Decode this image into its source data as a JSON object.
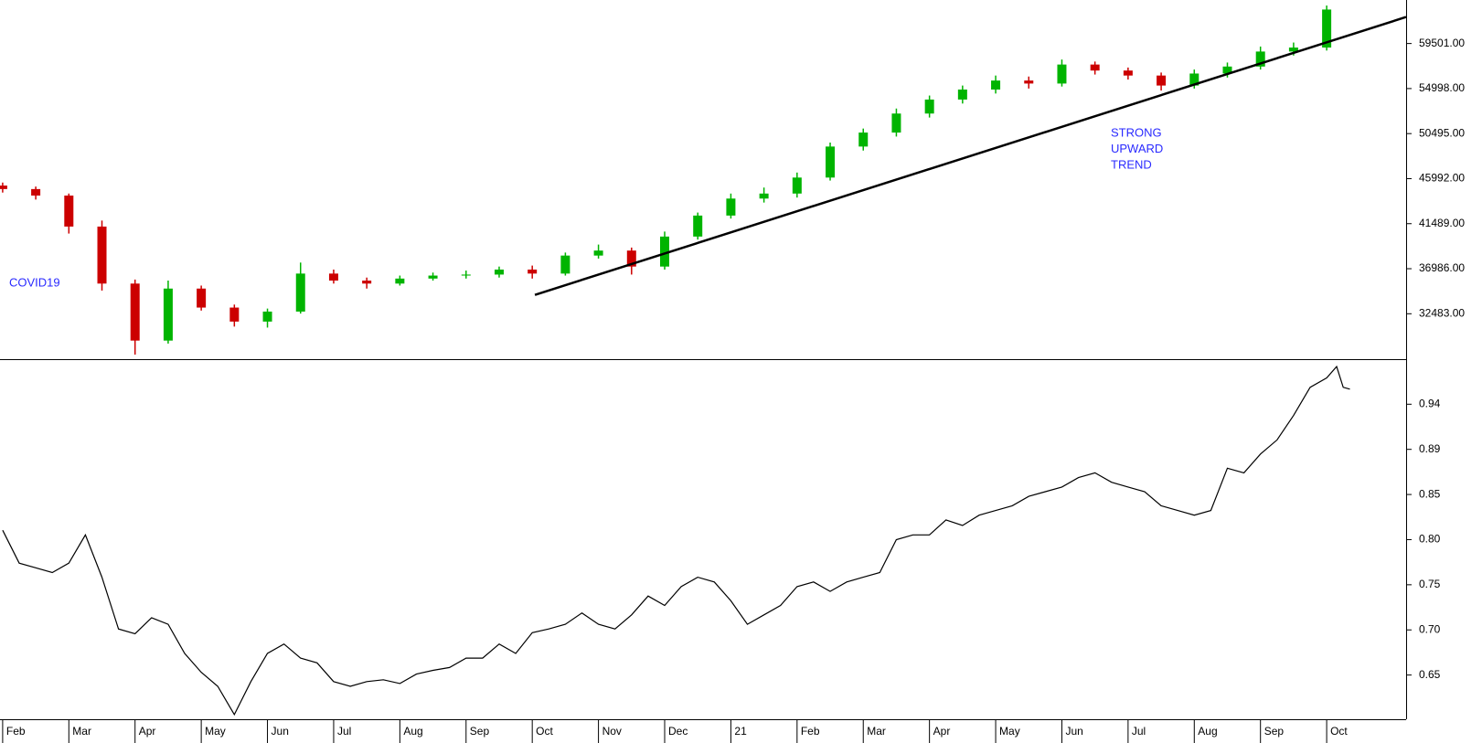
{
  "chart_data": [
    {
      "type": "candlestick",
      "x": [
        0,
        0.5,
        1,
        1.5,
        2,
        2.5,
        3,
        3.5,
        4,
        4.5,
        5,
        5.5,
        6,
        6.5,
        7,
        7.5,
        8,
        8.5,
        9,
        9.5,
        10,
        10.5,
        11,
        11.5,
        12,
        12.5,
        13,
        13.5,
        14,
        14.5,
        15,
        15.5,
        16,
        16.5,
        17,
        17.5,
        18,
        18.5,
        19,
        19.5,
        20
      ],
      "open": [
        45300,
        44950,
        44300,
        41200,
        35500,
        29800,
        35000,
        33100,
        31700,
        32700,
        36500,
        35800,
        35500,
        36000,
        36300,
        36400,
        36900,
        36500,
        38300,
        38800,
        37200,
        40200,
        42300,
        44000,
        44500,
        46100,
        49200,
        50600,
        52500,
        53900,
        54900,
        55800,
        55500,
        57400,
        56800,
        56300,
        55300,
        56500,
        57200,
        58700,
        59100
      ],
      "high": [
        45600,
        45200,
        44500,
        41800,
        35900,
        35800,
        35300,
        33400,
        33000,
        37600,
        36900,
        36100,
        36300,
        36600,
        36800,
        37200,
        37300,
        38600,
        39400,
        39100,
        40700,
        42600,
        44500,
        45100,
        46600,
        49600,
        51000,
        53000,
        54300,
        55300,
        56300,
        56200,
        57900,
        57700,
        57100,
        56600,
        56900,
        57600,
        59200,
        59600,
        63300
      ],
      "low": [
        44600,
        43900,
        40500,
        34800,
        28400,
        29500,
        32800,
        31200,
        31100,
        32500,
        35500,
        35000,
        35300,
        35800,
        36000,
        36100,
        36000,
        36300,
        38000,
        36400,
        36900,
        39900,
        42000,
        43600,
        44100,
        45800,
        48800,
        50200,
        52100,
        53500,
        54500,
        55000,
        55200,
        56400,
        55900,
        54800,
        55000,
        56100,
        56900,
        58300,
        58800
      ],
      "close": [
        44950,
        44300,
        41200,
        35500,
        29800,
        35000,
        33100,
        31700,
        32700,
        36500,
        35800,
        35500,
        36000,
        36300,
        36400,
        36900,
        36500,
        38300,
        38800,
        37200,
        40200,
        42300,
        44000,
        44500,
        46100,
        49200,
        50600,
        52500,
        53900,
        54900,
        55800,
        55500,
        57400,
        56800,
        56300,
        55300,
        56500,
        57200,
        58700,
        59100,
        62900
      ],
      "up_color": "#00b400",
      "down_color": "#cc0000",
      "ylim": [
        27942,
        63853
      ],
      "yticks": [
        {
          "value": 32483,
          "label": "32483.00"
        },
        {
          "value": 36986,
          "label": "36986.00"
        },
        {
          "value": 41489,
          "label": "41489.00"
        },
        {
          "value": 45992,
          "label": "45992.00"
        },
        {
          "value": 50495,
          "label": "50495.00"
        },
        {
          "value": 54998,
          "label": "54998.00"
        },
        {
          "value": 59501,
          "label": "59501.00"
        }
      ],
      "trendline": {
        "x": [
          8.04,
          21.2
        ],
        "values": [
          34370,
          62152
        ],
        "color": "#000000"
      },
      "annotations": [
        {
          "text": [
            "COVID19"
          ],
          "color": "#2a2aff"
        },
        {
          "text": [
            "STRONG",
            "UPWARD",
            "TREND"
          ],
          "color": "#2a2aff"
        }
      ]
    },
    {
      "type": "line",
      "color": "#000000",
      "x": [
        0,
        0.25,
        0.5,
        0.75,
        1,
        1.25,
        1.5,
        1.75,
        2,
        2.25,
        2.5,
        2.75,
        3,
        3.25,
        3.5,
        3.75,
        4,
        4.25,
        4.5,
        4.75,
        5,
        5.25,
        5.5,
        5.75,
        6,
        6.25,
        6.5,
        6.75,
        7,
        7.25,
        7.5,
        7.75,
        8,
        8.25,
        8.5,
        8.75,
        9,
        9.25,
        9.5,
        9.75,
        10,
        10.25,
        10.5,
        10.75,
        11,
        11.25,
        11.5,
        11.75,
        12,
        12.25,
        12.5,
        12.75,
        13,
        13.25,
        13.5,
        13.75,
        14,
        14.25,
        14.5,
        14.75,
        15,
        15.25,
        15.5,
        15.75,
        16,
        16.25,
        16.5,
        16.75,
        17,
        17.25,
        17.5,
        17.75,
        18,
        18.25,
        18.5,
        18.75,
        19,
        19.25,
        19.5,
        19.75,
        20,
        20.15,
        20.25,
        20.35
      ],
      "values": [
        0.808,
        0.773,
        0.768,
        0.763,
        0.773,
        0.803,
        0.758,
        0.703,
        0.698,
        0.715,
        0.708,
        0.677,
        0.657,
        0.642,
        0.612,
        0.647,
        0.677,
        0.687,
        0.672,
        0.667,
        0.647,
        0.642,
        0.647,
        0.649,
        0.645,
        0.655,
        0.659,
        0.662,
        0.672,
        0.672,
        0.687,
        0.677,
        0.699,
        0.703,
        0.708,
        0.72,
        0.708,
        0.703,
        0.718,
        0.738,
        0.728,
        0.748,
        0.758,
        0.753,
        0.733,
        0.708,
        0.718,
        0.728,
        0.748,
        0.753,
        0.743,
        0.753,
        0.758,
        0.763,
        0.798,
        0.803,
        0.803,
        0.819,
        0.813,
        0.824,
        0.829,
        0.834,
        0.844,
        0.849,
        0.854,
        0.864,
        0.869,
        0.859,
        0.854,
        0.849,
        0.834,
        0.829,
        0.824,
        0.829,
        0.874,
        0.869,
        0.889,
        0.904,
        0.93,
        0.96,
        0.97,
        0.982,
        0.96,
        0.958
      ],
      "ylim": [
        0.607,
        0.987
      ],
      "yticks": [
        {
          "value": 0.654,
          "label": "0.65"
        },
        {
          "value": 0.702,
          "label": "0.70"
        },
        {
          "value": 0.75,
          "label": "0.75"
        },
        {
          "value": 0.798,
          "label": "0.80"
        },
        {
          "value": 0.846,
          "label": "0.85"
        },
        {
          "value": 0.894,
          "label": "0.89"
        },
        {
          "value": 0.942,
          "label": "0.94"
        }
      ],
      "xlim": [
        -0.04,
        21.2
      ],
      "xticks": [
        {
          "value": 0,
          "label": "Feb"
        },
        {
          "value": 1,
          "label": "Mar"
        },
        {
          "value": 2,
          "label": "Apr"
        },
        {
          "value": 3,
          "label": "May"
        },
        {
          "value": 4,
          "label": "Jun"
        },
        {
          "value": 5,
          "label": "Jul"
        },
        {
          "value": 6,
          "label": "Aug"
        },
        {
          "value": 7,
          "label": "Sep"
        },
        {
          "value": 8,
          "label": "Oct"
        },
        {
          "value": 9,
          "label": "Nov"
        },
        {
          "value": 10,
          "label": "Dec"
        },
        {
          "value": 11,
          "label": "21"
        },
        {
          "value": 12,
          "label": "Feb"
        },
        {
          "value": 13,
          "label": "Mar"
        },
        {
          "value": 14,
          "label": "Apr"
        },
        {
          "value": 15,
          "label": "May"
        },
        {
          "value": 16,
          "label": "Jun"
        },
        {
          "value": 17,
          "label": "Jul"
        },
        {
          "value": 18,
          "label": "Aug"
        },
        {
          "value": 19,
          "label": "Sep"
        },
        {
          "value": 20,
          "label": "Oct"
        }
      ]
    }
  ]
}
